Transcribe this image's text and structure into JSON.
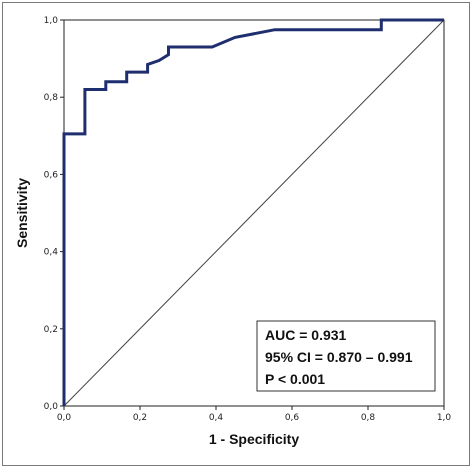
{
  "chart_data": {
    "type": "line",
    "xlabel": "1 - Specificity",
    "ylabel": "Sensitivity",
    "xlim": [
      0,
      1
    ],
    "ylim": [
      0,
      1
    ],
    "x_ticks": [
      "0,0",
      "0,2",
      "0,4",
      "0,6",
      "0,8",
      "1,0"
    ],
    "y_ticks": [
      "0,0",
      "0,2",
      "0,4",
      "0,6",
      "0,8",
      "1,0"
    ],
    "grid": false,
    "series": [
      {
        "role": "roc-curve",
        "color": "#1f2e6e",
        "points": [
          [
            0,
            0
          ],
          [
            0,
            0.705
          ],
          [
            0.055,
            0.705
          ],
          [
            0.055,
            0.82
          ],
          [
            0.11,
            0.82
          ],
          [
            0.11,
            0.84
          ],
          [
            0.165,
            0.84
          ],
          [
            0.165,
            0.865
          ],
          [
            0.22,
            0.865
          ],
          [
            0.22,
            0.885
          ],
          [
            0.25,
            0.895
          ],
          [
            0.275,
            0.91
          ],
          [
            0.275,
            0.93
          ],
          [
            0.39,
            0.93
          ],
          [
            0.45,
            0.955
          ],
          [
            0.555,
            0.975
          ],
          [
            0.835,
            0.975
          ],
          [
            0.835,
            1.0
          ],
          [
            1.0,
            1.0
          ]
        ]
      },
      {
        "role": "reference-line",
        "color": "#444444",
        "points": [
          [
            0,
            0
          ],
          [
            1,
            1
          ]
        ]
      }
    ],
    "annotations": {
      "auc": "AUC = 0.931",
      "ci": "95% CI = 0.870 – 0.991",
      "p": "P < 0.001",
      "placement": "bottom-right"
    }
  }
}
